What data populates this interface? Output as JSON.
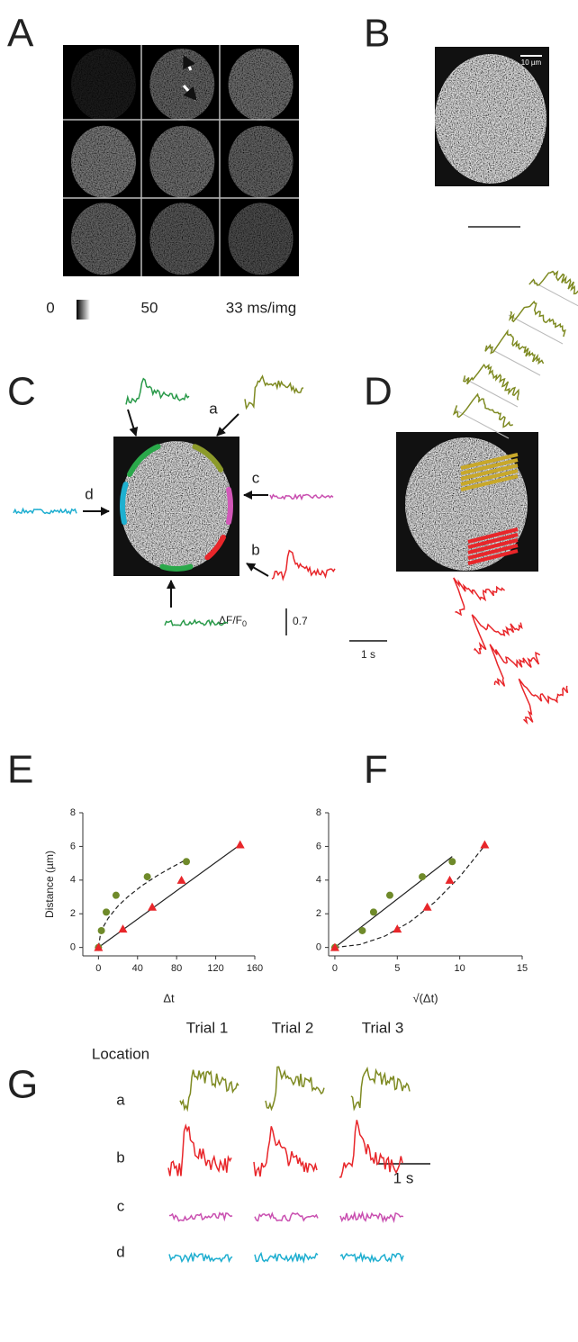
{
  "panel_a": {
    "letter": "A",
    "colorbar_min": "0",
    "colorbar_max": "50",
    "frame_interval": "33 ms/img"
  },
  "panel_b": {
    "letter": "B",
    "scale_bar": "10 µm"
  },
  "panel_c": {
    "letter": "C",
    "locations": [
      "a",
      "b",
      "c",
      "d"
    ],
    "amplitude_label": "ΔF/F",
    "amplitude_sub": "0",
    "amplitude_value": "0.7",
    "time_bar": "1 s"
  },
  "panel_d": {
    "letter": "D"
  },
  "panel_e": {
    "letter": "E"
  },
  "panel_f": {
    "letter": "F"
  },
  "panel_g": {
    "letter": "G",
    "column_header": "Location",
    "trials": [
      "Trial 1",
      "Trial 2",
      "Trial 3"
    ],
    "locations": [
      "a",
      "b",
      "c",
      "d"
    ],
    "time_bar": "1 s"
  },
  "chart_data": [
    {
      "type": "scatter",
      "x_label": "Δt",
      "y_label": "Distance (µm)",
      "xlim": [
        -16,
        160
      ],
      "ylim": [
        -0.5,
        8
      ],
      "xticks": [
        0,
        40,
        80,
        120,
        160
      ],
      "yticks": [
        0,
        2,
        4,
        6,
        8
      ],
      "series": [
        {
          "color": "#6f8a2a",
          "marker": "circle",
          "x": [
            0,
            3,
            8,
            18,
            50,
            90
          ],
          "values": [
            0,
            1,
            2.1,
            3.1,
            4.2,
            5.1
          ]
        },
        {
          "color": "#e8262a",
          "marker": "triangle",
          "x": [
            0,
            25,
            55,
            85,
            145
          ],
          "values": [
            0,
            1.1,
            2.4,
            4,
            6.1
          ]
        }
      ],
      "fits": [
        {
          "color": "#222222",
          "dash": true,
          "x": [
            0,
            2,
            5,
            10,
            20,
            30,
            45,
            60,
            75,
            90
          ],
          "values": [
            0,
            0.78,
            1.23,
            1.74,
            2.46,
            3.01,
            3.69,
            4.26,
            4.76,
            5.22
          ]
        },
        {
          "color": "#222222",
          "dash": false,
          "x": [
            0,
            145
          ],
          "values": [
            0,
            6.1
          ]
        }
      ]
    },
    {
      "type": "scatter",
      "x_label": "√(Δt)",
      "xlim": [
        -0.5,
        15
      ],
      "ylim": [
        -0.5,
        8
      ],
      "xticks": [
        0,
        5,
        10,
        15
      ],
      "yticks": [
        0,
        2,
        4,
        6,
        8
      ],
      "series": [
        {
          "color": "#6f8a2a",
          "marker": "circle",
          "x": [
            0,
            2.2,
            3.1,
            4.4,
            7,
            9.4
          ],
          "values": [
            0,
            1,
            2.1,
            3.1,
            4.2,
            5.1
          ]
        },
        {
          "color": "#e8262a",
          "marker": "triangle",
          "x": [
            0,
            5,
            7.4,
            9.2,
            12
          ],
          "values": [
            0,
            1.1,
            2.4,
            4,
            6.1
          ]
        }
      ],
      "fits": [
        {
          "color": "#222222",
          "dash": false,
          "x": [
            0,
            9.4
          ],
          "values": [
            0,
            5.4
          ]
        },
        {
          "color": "#222222",
          "dash": true,
          "x": [
            0,
            2,
            4,
            6,
            8,
            10,
            12
          ],
          "values": [
            0,
            0.17,
            0.67,
            1.51,
            2.69,
            4.2,
            6.05
          ]
        }
      ]
    }
  ]
}
